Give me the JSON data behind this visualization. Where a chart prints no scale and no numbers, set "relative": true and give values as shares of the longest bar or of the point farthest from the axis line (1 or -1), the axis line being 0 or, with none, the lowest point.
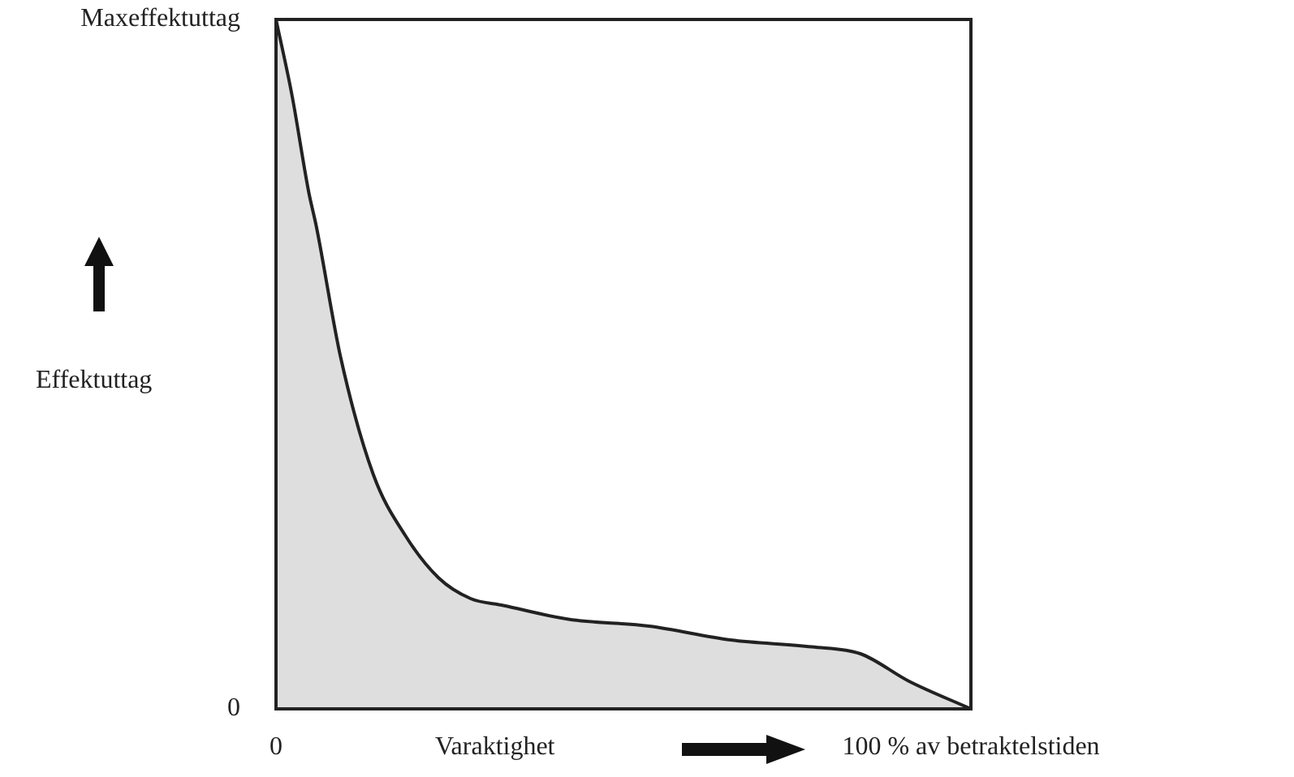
{
  "chart_data": {
    "type": "area",
    "xlabel": "Varaktighet",
    "ylabel": "Effektuttag",
    "x": [
      0,
      2.3,
      4.7,
      5.8,
      9.3,
      14,
      18.7,
      23.4,
      28,
      32.7,
      42.1,
      53.7,
      65.4,
      77.1,
      84.1,
      91.1,
      100
    ],
    "series": [
      {
        "color": "#222222",
        "values": [
          1,
          0.89,
          0.75,
          0.7,
          0.51,
          0.34,
          0.25,
          0.19,
          0.16,
          0.15,
          0.13,
          0.12,
          0.1,
          0.09,
          0.08,
          0.04,
          0
        ]
      }
    ],
    "xlim": [
      0,
      100
    ],
    "xticks": [
      0,
      {
        "value": 100,
        "label": "100 % av betraktelstiden"
      }
    ],
    "relative": true,
    "annotations": [
      "Maxeffektuttag",
      "0"
    ],
    "legend": false
  }
}
